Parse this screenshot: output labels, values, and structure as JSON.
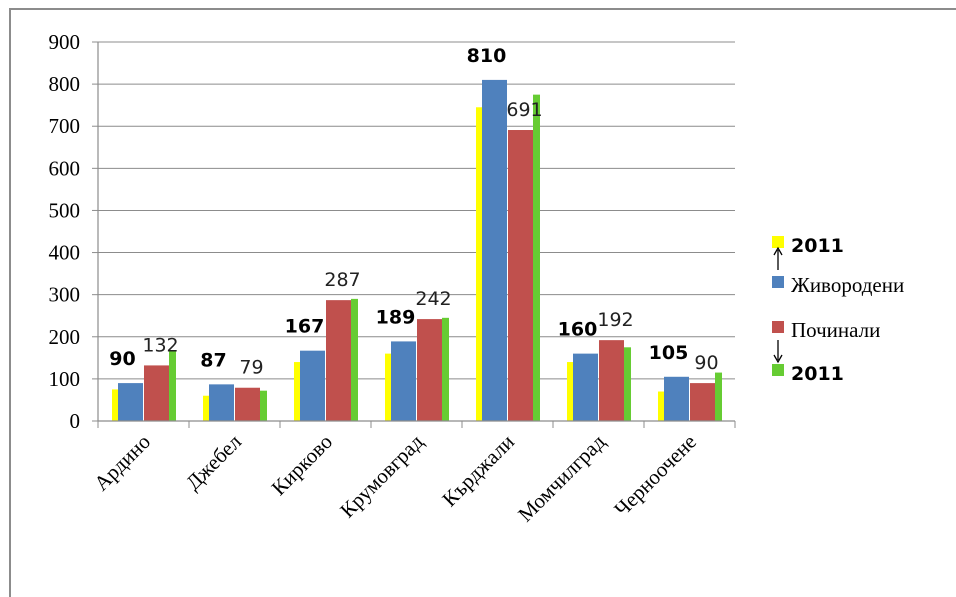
{
  "chart_data": {
    "type": "bar",
    "categories": [
      "Ардино",
      "Джебел",
      "Кирково",
      "Крумовград",
      "Кърджали",
      "Момчилград",
      "Черноочене"
    ],
    "series": [
      {
        "name": "2011",
        "color": "#ffff00",
        "values": [
          75,
          60,
          140,
          160,
          745,
          140,
          70
        ]
      },
      {
        "name": "Живородени",
        "color": "#4f81bd",
        "values": [
          90,
          87,
          167,
          189,
          810,
          160,
          105
        ]
      },
      {
        "name": "Починали",
        "color": "#c0504d",
        "values": [
          132,
          79,
          287,
          242,
          691,
          192,
          90
        ]
      },
      {
        "name": "2011",
        "color": "#66cc33",
        "values": [
          167,
          72,
          290,
          245,
          775,
          175,
          115
        ]
      }
    ],
    "data_labels": {
      "Живородени": [
        "90",
        "87",
        "167",
        "189",
        "810",
        "160",
        "105"
      ],
      "Починали": [
        "132",
        "79",
        "287",
        "242",
        "691",
        "192",
        "90"
      ]
    },
    "ylim": [
      0,
      900
    ],
    "yticks": [
      "0",
      "100",
      "200",
      "300",
      "400",
      "500",
      "600",
      "700",
      "800",
      "900"
    ],
    "grid": true,
    "legend_position": "right",
    "title": "",
    "xlabel": "",
    "ylabel": ""
  }
}
